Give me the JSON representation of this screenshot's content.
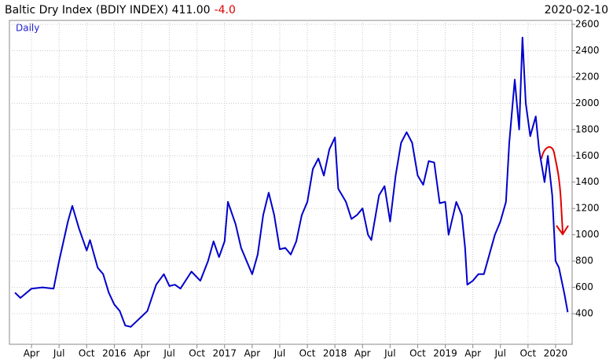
{
  "chart_data": {
    "type": "line",
    "title": "Baltic Dry Index (BDIY INDEX) 411.00",
    "change": "-4.0",
    "date": "2020-02-10",
    "frequency": "Daily",
    "grid": true,
    "x": [
      2015.1,
      2015.15,
      2015.25,
      2015.35,
      2015.45,
      2015.5,
      2015.58,
      2015.62,
      2015.68,
      2015.75,
      2015.78,
      2015.85,
      2015.9,
      2015.95,
      2016.0,
      2016.05,
      2016.1,
      2016.15,
      2016.25,
      2016.3,
      2016.38,
      2016.45,
      2016.5,
      2016.55,
      2016.6,
      2016.7,
      2016.78,
      2016.85,
      2016.9,
      2016.95,
      2017.0,
      2017.03,
      2017.1,
      2017.15,
      2017.2,
      2017.25,
      2017.3,
      2017.35,
      2017.4,
      2017.45,
      2017.5,
      2017.55,
      2017.6,
      2017.65,
      2017.7,
      2017.75,
      2017.8,
      2017.85,
      2017.9,
      2017.95,
      2018.0,
      2018.03,
      2018.1,
      2018.15,
      2018.2,
      2018.25,
      2018.3,
      2018.33,
      2018.4,
      2018.45,
      2018.5,
      2018.55,
      2018.6,
      2018.65,
      2018.7,
      2018.75,
      2018.8,
      2018.85,
      2018.9,
      2018.95,
      2019.0,
      2019.03,
      2019.1,
      2019.15,
      2019.18,
      2019.2,
      2019.25,
      2019.3,
      2019.35,
      2019.45,
      2019.5,
      2019.55,
      2019.58,
      2019.63,
      2019.67,
      2019.7,
      2019.73,
      2019.77,
      2019.82,
      2019.85,
      2019.9,
      2019.93,
      2019.97,
      2020.0,
      2020.03,
      2020.08,
      2020.11
    ],
    "series": [
      {
        "name": "BDIY INDEX",
        "color": "#0000cc",
        "values": [
          560,
          520,
          590,
          600,
          590,
          800,
          1100,
          1220,
          1050,
          880,
          960,
          750,
          700,
          560,
          470,
          420,
          310,
          300,
          380,
          420,
          620,
          700,
          610,
          620,
          590,
          720,
          650,
          800,
          950,
          830,
          950,
          1250,
          1080,
          900,
          800,
          700,
          850,
          1150,
          1320,
          1150,
          890,
          900,
          850,
          950,
          1150,
          1250,
          1500,
          1580,
          1450,
          1650,
          1740,
          1350,
          1250,
          1120,
          1150,
          1200,
          1000,
          960,
          1300,
          1370,
          1100,
          1450,
          1700,
          1780,
          1700,
          1450,
          1380,
          1560,
          1550,
          1240,
          1250,
          1000,
          1250,
          1150,
          900,
          620,
          650,
          700,
          700,
          1000,
          1100,
          1250,
          1700,
          2180,
          1800,
          2500,
          2000,
          1750,
          1900,
          1650,
          1400,
          1600,
          1300,
          800,
          750,
          550,
          411
        ]
      }
    ],
    "xlim": [
      2015.05,
      2020.15
    ],
    "xticks": [
      {
        "value": 2015.25,
        "label": "Apr"
      },
      {
        "value": 2015.5,
        "label": "Jul"
      },
      {
        "value": 2015.75,
        "label": "Oct"
      },
      2016,
      {
        "value": 2016.25,
        "label": "Apr"
      },
      {
        "value": 2016.5,
        "label": "Jul"
      },
      {
        "value": 2016.75,
        "label": "Oct"
      },
      2017,
      {
        "value": 2017.25,
        "label": "Apr"
      },
      {
        "value": 2017.5,
        "label": "Jul"
      },
      {
        "value": 2017.75,
        "label": "Oct"
      },
      2018,
      {
        "value": 2018.25,
        "label": "Apr"
      },
      {
        "value": 2018.5,
        "label": "Jul"
      },
      {
        "value": 2018.75,
        "label": "Oct"
      },
      2019,
      {
        "value": 2019.25,
        "label": "Apr"
      },
      {
        "value": 2019.5,
        "label": "Jul"
      },
      {
        "value": 2019.75,
        "label": "Oct"
      },
      2020
    ],
    "ylim": [
      167,
      2630
    ],
    "yticks": [
      400,
      600,
      800,
      1000,
      1200,
      1400,
      1600,
      1800,
      2000,
      2200,
      2400,
      2600
    ]
  }
}
